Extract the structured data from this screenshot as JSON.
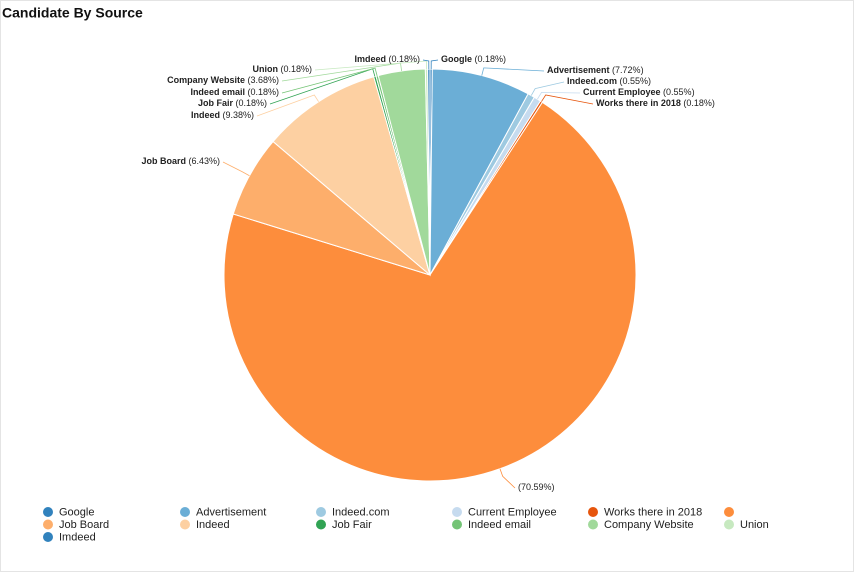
{
  "chart_data": {
    "type": "pie",
    "title": "Candidate By Source",
    "categories": [
      "Google",
      "Advertisement",
      "Indeed.com",
      "Current Employee",
      "Works there in 2018",
      null,
      "Job Board",
      "Indeed",
      "Job Fair",
      "Indeed email",
      "Company Website",
      "Union",
      "Imdeed"
    ],
    "values": [
      0.18,
      7.72,
      0.55,
      0.55,
      0.18,
      70.59,
      6.43,
      9.38,
      0.18,
      0.18,
      3.68,
      0.18,
      0.18
    ],
    "value_labels": [
      "(0.18%)",
      "(7.72%)",
      "(0.55%)",
      "(0.55%)",
      "(0.18%)",
      "(70.59%)",
      "(6.43%)",
      "(9.38%)",
      "(0.18%)",
      "(0.18%)",
      "(3.68%)",
      "(0.18%)",
      "(0.18%)"
    ],
    "colors": [
      "#3182bd",
      "#6baed6",
      "#9ecae1",
      "#c6dbef",
      "#e6550d",
      "#fd8d3c",
      "#fdae6b",
      "#fdd0a2",
      "#31a354",
      "#74c476",
      "#a1d99b",
      "#c7e9c0",
      "#3182bd"
    ],
    "legend": "bottom"
  }
}
